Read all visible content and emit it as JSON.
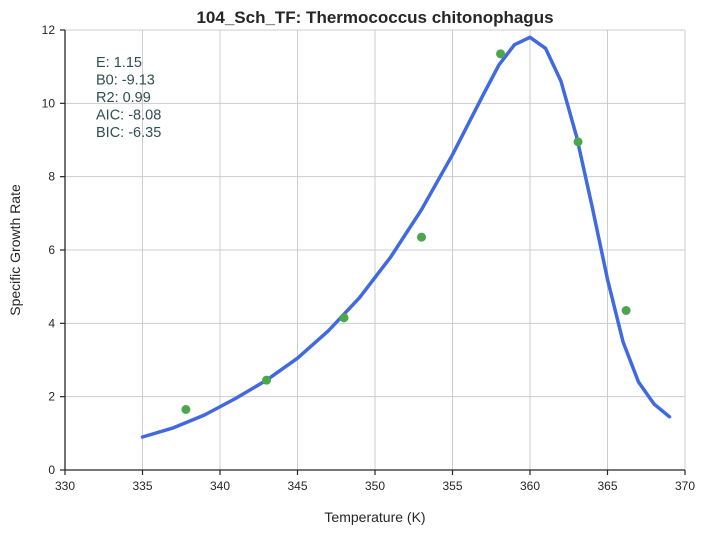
{
  "chart_data": {
    "type": "scatter",
    "title": "104_Sch_TF: Thermococcus chitonophagus",
    "xlabel": "Temperature (K)",
    "ylabel": "Specific Growth Rate",
    "xlim": [
      330,
      370
    ],
    "ylim": [
      0,
      12
    ],
    "xticks": [
      330,
      335,
      340,
      345,
      350,
      355,
      360,
      365,
      370
    ],
    "yticks": [
      0,
      2,
      4,
      6,
      8,
      10,
      12
    ],
    "grid": true,
    "colors": {
      "points": "#4ca64c",
      "fit": "#4169e1",
      "stats": "#2f4f4f",
      "grid": "#cccccc",
      "axis": "#262626"
    },
    "series": [
      {
        "kind": "scatter",
        "x": [
          337.8,
          343.0,
          348.0,
          353.0,
          358.1,
          363.1,
          366.2
        ],
        "y": [
          1.65,
          2.45,
          4.15,
          6.35,
          11.35,
          8.95,
          4.35
        ]
      },
      {
        "kind": "line",
        "x": [
          335,
          337,
          339,
          341,
          343,
          345,
          347,
          349,
          351,
          353,
          355,
          357,
          358,
          359,
          360,
          361,
          362,
          363,
          364,
          365,
          366,
          367,
          368,
          369
        ],
        "y": [
          0.9,
          1.15,
          1.5,
          1.95,
          2.45,
          3.05,
          3.8,
          4.7,
          5.8,
          7.1,
          8.6,
          10.25,
          11.05,
          11.6,
          11.8,
          11.5,
          10.6,
          9.1,
          7.2,
          5.2,
          3.5,
          2.4,
          1.8,
          1.45
        ]
      }
    ],
    "annotations": [
      "E:  1.15",
      "B0:  -9.13",
      "R2:  0.99",
      "AIC: -8.08",
      "BIC: -6.35"
    ]
  }
}
